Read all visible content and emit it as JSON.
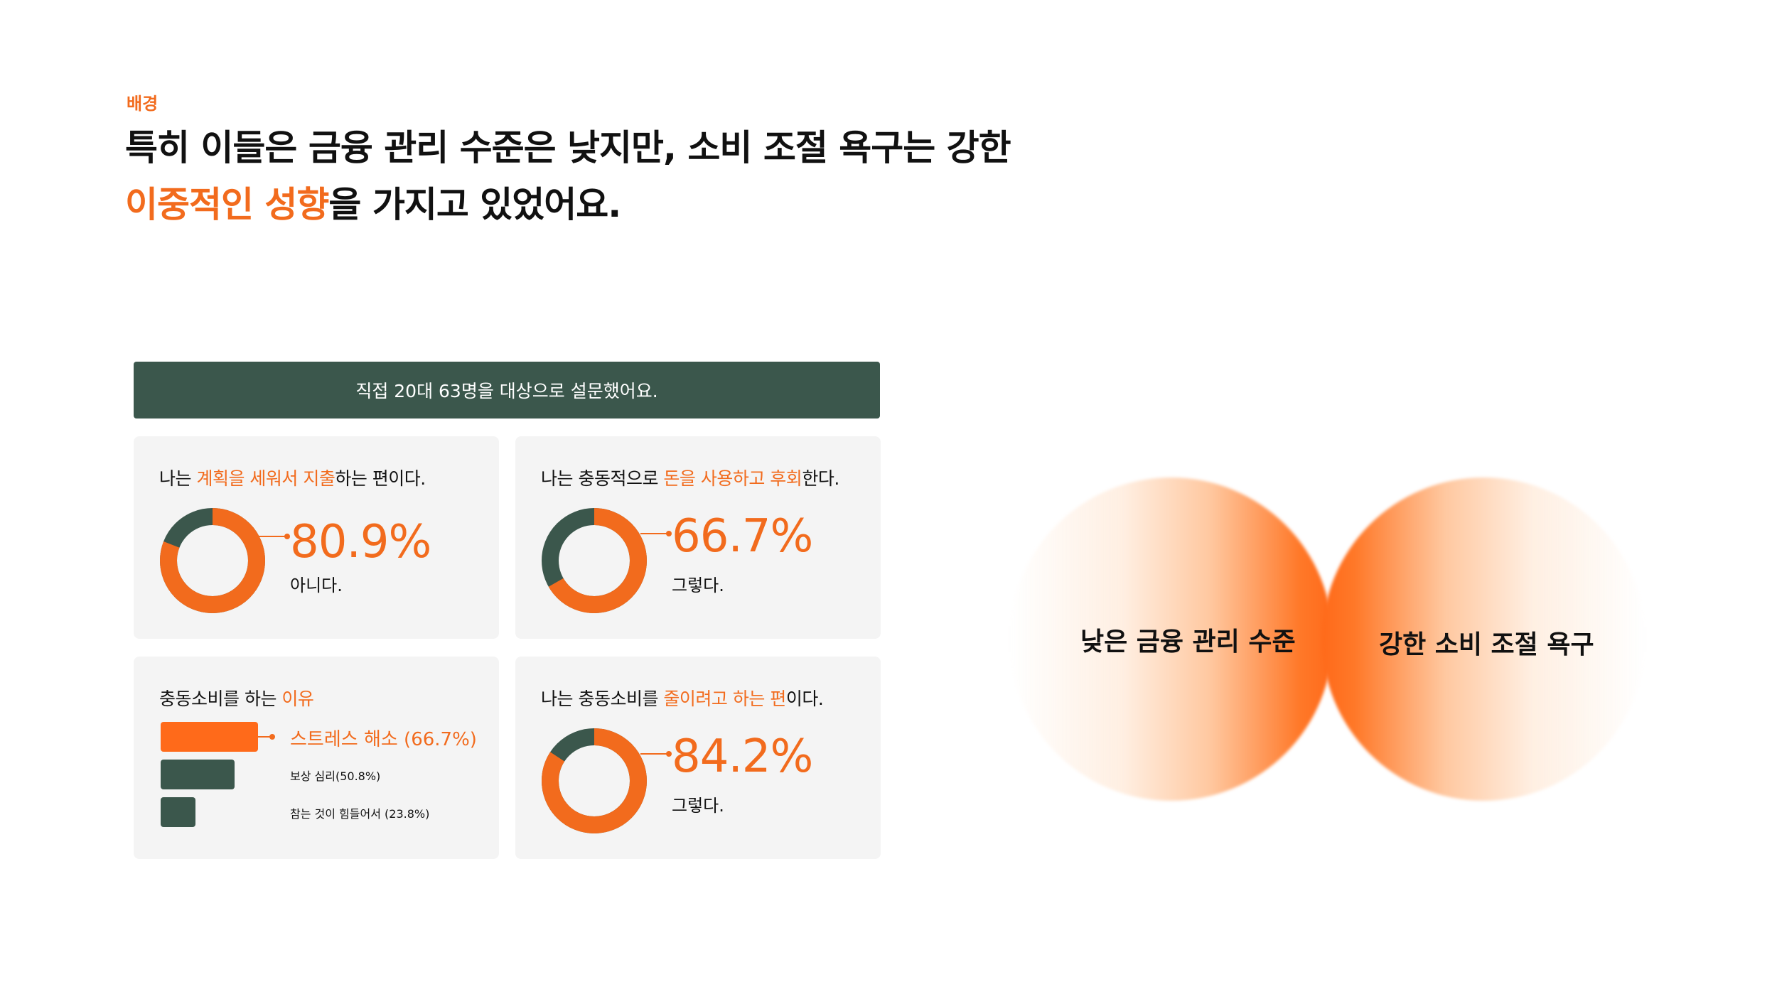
{
  "header": {
    "eyebrow": "배경",
    "line1": "특히 이들은 금융 관리 수준은 낮지만, 소비 조절 욕구는 강한",
    "line2_highlight": "이중적인 성향",
    "line2_rest": "을 가지고 있었어요."
  },
  "banner": "직접 20대 63명을 대상으로 설문했어요.",
  "colors": {
    "accent": "#f26b1d",
    "dark": "#3b574c",
    "card_bg": "#f4f4f4"
  },
  "cards": [
    {
      "title_pre": "나는 ",
      "title_hl": "계획을 세워서 지출",
      "title_post": "하는 편이다.",
      "percent": "80.9%",
      "answer": "아니다."
    },
    {
      "title_pre": "나는 충동적으로 ",
      "title_hl": "돈을 사용하고 후회",
      "title_post": "한다.",
      "percent": "66.7%",
      "answer": "그렇다."
    },
    {
      "title_pre": "충동소비를 하는 ",
      "title_hl": "이유",
      "title_post": ""
    },
    {
      "title_pre": "나는 충동소비를 ",
      "title_hl": "줄이려고 하는 편",
      "title_post": "이다.",
      "percent": "84.2%",
      "answer": "그렇다."
    }
  ],
  "chart_data": [
    {
      "type": "pie",
      "title": "나는 계획을 세워서 지출하는 편이다.",
      "categories": [
        "아니다.",
        ""
      ],
      "values": [
        80.9,
        19.1
      ]
    },
    {
      "type": "pie",
      "title": "나는 충동적으로 돈을 사용하고 후회한다.",
      "categories": [
        "그렇다.",
        ""
      ],
      "values": [
        66.7,
        33.3
      ]
    },
    {
      "type": "bar",
      "title": "충동소비를 하는 이유",
      "categories": [
        "스트레스 해소 (66.7%)",
        "보상 심리(50.8%)",
        "참는 것이 힘들어서 (23.8%)"
      ],
      "values": [
        66.7,
        50.8,
        23.8
      ]
    },
    {
      "type": "pie",
      "title": "나는 충동소비를 줄이려고 하는 편이다.",
      "categories": [
        "그렇다.",
        ""
      ],
      "values": [
        84.2,
        15.8
      ]
    }
  ],
  "venn": {
    "left_label": "낮은 금융 관리 수준",
    "right_label": "강한 소비 조절 욕구"
  }
}
